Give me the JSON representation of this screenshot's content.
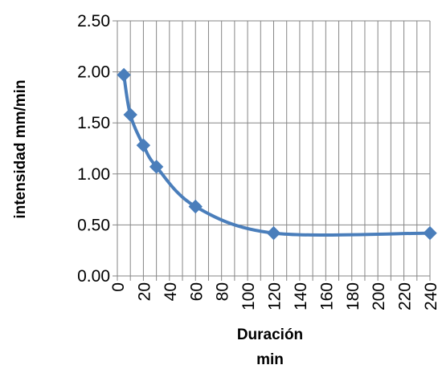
{
  "chart_data": {
    "type": "line",
    "xlabel_line1": "Duración",
    "xlabel_line2": "min",
    "ylabel": "intensidad mm/min",
    "xlim": [
      0,
      240
    ],
    "ylim": [
      0,
      2.5
    ],
    "x_ticks": [
      0,
      20,
      40,
      60,
      80,
      100,
      120,
      140,
      160,
      180,
      200,
      220,
      240
    ],
    "x_tick_labels": [
      "0",
      "20",
      "40",
      "60",
      "80",
      "100",
      "120",
      "140",
      "160",
      "180",
      "200",
      "220",
      "240"
    ],
    "x_minor_gridlines": [
      10,
      30,
      50,
      70,
      90,
      110,
      130,
      150,
      170,
      190,
      210,
      230
    ],
    "y_ticks": [
      0,
      0.5,
      1.0,
      1.5,
      2.0,
      2.5
    ],
    "y_tick_labels": [
      "0.00",
      "0.50",
      "1.00",
      "1.50",
      "2.00",
      "2.50"
    ],
    "grid": true,
    "series": [
      {
        "color": "#4a7ebb",
        "marker": "diamond",
        "smooth": true,
        "x": [
          5,
          10,
          20,
          30,
          60,
          120,
          240
        ],
        "y": [
          1.97,
          1.58,
          1.28,
          1.07,
          0.68,
          0.42,
          0.42
        ]
      }
    ]
  }
}
